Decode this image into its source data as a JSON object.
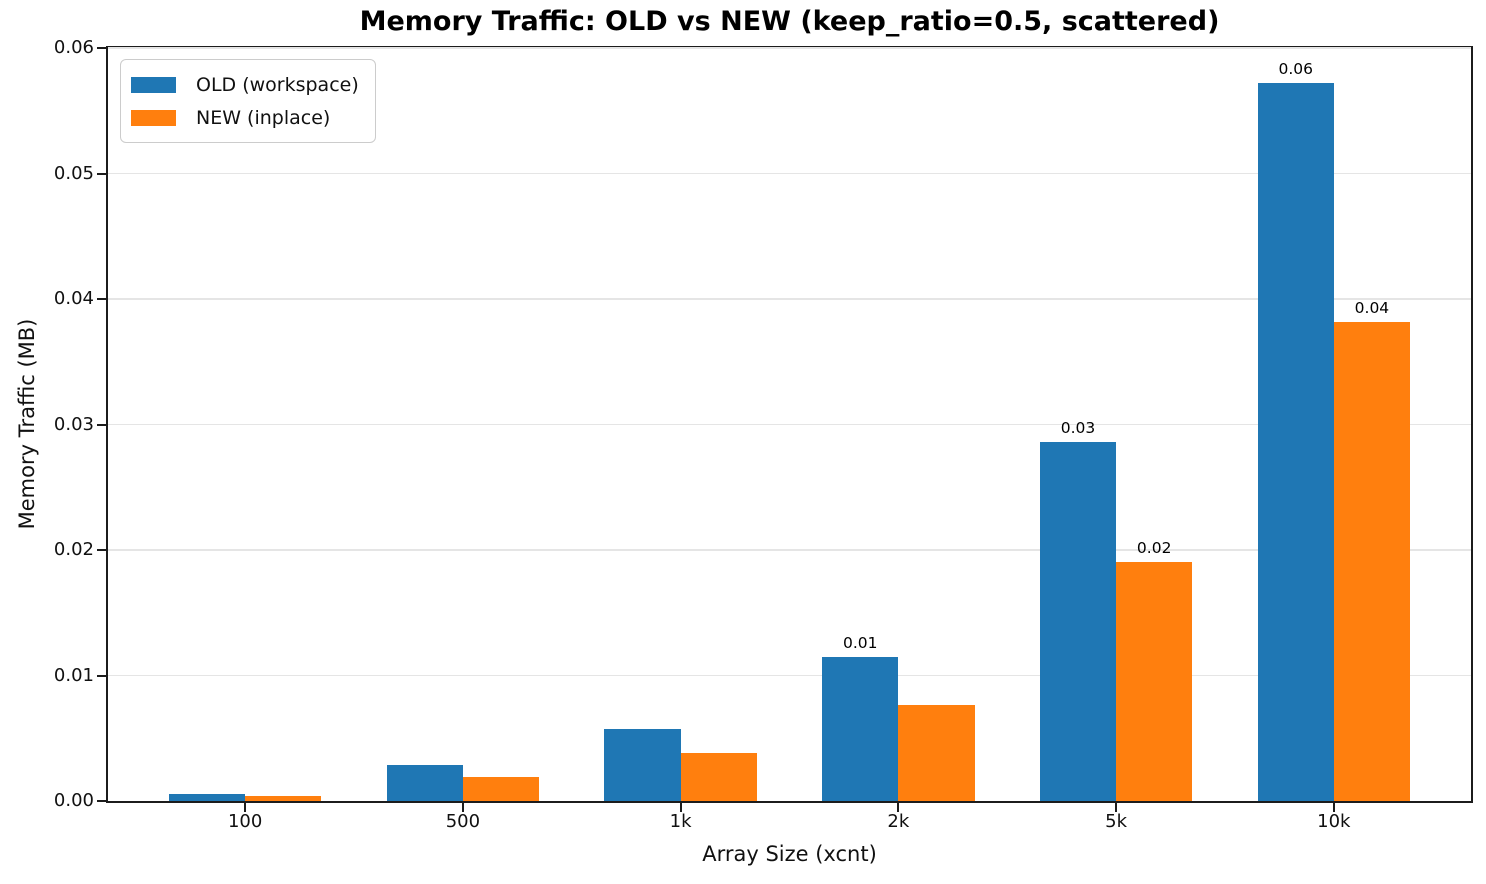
{
  "chart_data": {
    "type": "bar",
    "title": "Memory Traffic: OLD vs NEW (keep_ratio=0.5, scattered)",
    "xlabel": "Array Size (xcnt)",
    "ylabel": "Memory Traffic (MB)",
    "categories": [
      "100",
      "500",
      "1k",
      "2k",
      "5k",
      "10k"
    ],
    "series": [
      {
        "name": "OLD (workspace)",
        "color": "#1f77b4",
        "values": [
          0.00057,
          0.00286,
          0.00572,
          0.01144,
          0.02861,
          0.05722
        ],
        "bar_labels": [
          "",
          "",
          "",
          "0.01",
          "0.03",
          "0.06"
        ]
      },
      {
        "name": "NEW (inplace)",
        "color": "#ff7f0e",
        "values": [
          0.00038,
          0.00191,
          0.00381,
          0.00763,
          0.01907,
          0.03815
        ],
        "bar_labels": [
          "",
          "",
          "",
          "",
          "0.02",
          "0.04"
        ]
      }
    ],
    "y_ticks": [
      "0.00",
      "0.01",
      "0.02",
      "0.03",
      "0.04",
      "0.05",
      "0.06"
    ],
    "ylim": [
      0,
      0.06
    ],
    "grid": "horizontal-only",
    "grid_color": "#e5e5e5",
    "spine_color": "#1c1c1c",
    "legend_position": "upper-left",
    "bar_group_width": 0.7,
    "bars_per_group": 2
  }
}
